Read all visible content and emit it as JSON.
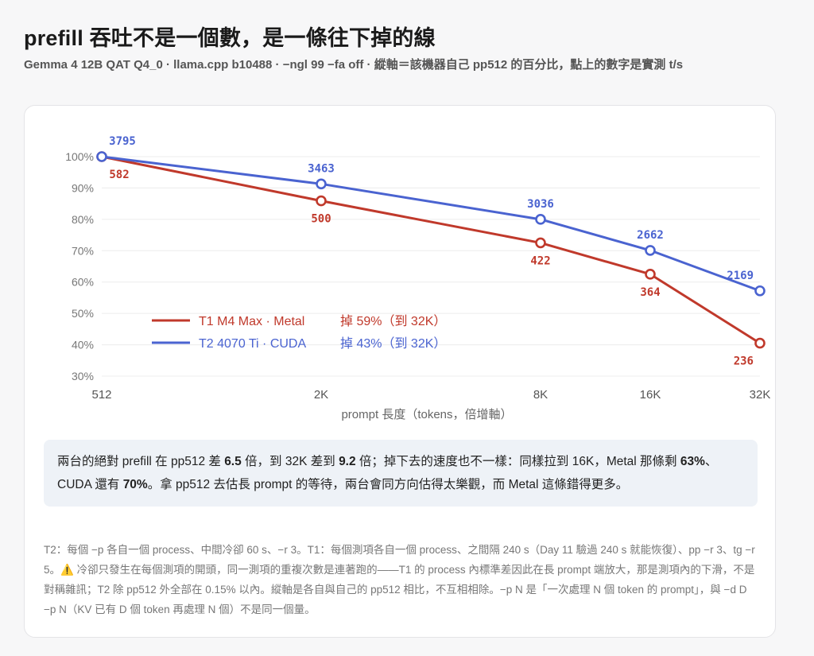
{
  "title": "prefill 吞吐不是一個數，是一條往下掉的線",
  "subtitle": "Gemma 4 12B QAT Q4_0 · llama.cpp b10488 · −ngl 99 −fa off · 縱軸＝該機器自己 pp512 的百分比，點上的數字是實測 t/s",
  "colors": {
    "t1": "#c0392b",
    "t2": "#4a63d0"
  },
  "chart_data": {
    "type": "line",
    "categories": [
      "512",
      "2K",
      "8K",
      "16K",
      "32K"
    ],
    "x": [
      512,
      2048,
      8192,
      16384,
      32768
    ],
    "xscale": "log2",
    "xlabel": "prompt 長度（tokens，倍增軸）",
    "ylabel": "",
    "ylim": [
      30,
      100
    ],
    "yticks": [
      "100%",
      "90%",
      "80%",
      "70%",
      "60%",
      "50%",
      "40%",
      "30%"
    ],
    "grid": true,
    "legend_position": "center-left",
    "series": [
      {
        "name": "T1 M4 Max · Metal",
        "tag": "掉 59%（到 32K）",
        "values": [
          100,
          85.9,
          72.5,
          62.5,
          40.5
        ],
        "labels": [
          "582",
          "500",
          "422",
          "364",
          "236"
        ],
        "label_side": "below"
      },
      {
        "name": "T2 4070 Ti · CUDA",
        "tag": "掉 43%（到 32K）",
        "values": [
          100,
          91.3,
          80.0,
          70.1,
          57.2
        ],
        "labels": [
          "3795",
          "3463",
          "3036",
          "2662",
          "2169"
        ],
        "label_side": "above"
      }
    ]
  },
  "note": {
    "p1": "兩台的絕對 prefill 在 pp512 差 ",
    "v1": "6.5",
    "p2": " 倍，到 32K 差到 ",
    "v2": "9.2",
    "p3": " 倍；掉下去的速度也不一樣：同樣拉到 16K，Metal 那條剩 ",
    "v3": "63%",
    "p4": "、CUDA 還有 ",
    "v4": "70%",
    "p5": "。拿 pp512 去估長 prompt 的等待，兩台會同方向估得太樂觀，而 Metal 這條錯得更多。"
  },
  "footnote": {
    "before": "T2：每個 −p 各自一個 process、中間冷卻 60 s、−r 3。T1：每個測項各自一個 process、之間隔 240 s（Day 11 驗過 240 s 就能恢復）、pp −r 3、tg −r 5。",
    "warn_icon": "⚠️",
    "after": " 冷卻只發生在每個測項的開頭，同一測項的重複次數是連著跑的——T1 的 process 內標準差因此在長 prompt 端放大，那是測項內的下滑，不是對稱雜訊；T2 除 pp512 外全部在 0.15% 以內。縱軸是各自與自己的 pp512 相比，不互相相除。−p N 是「一次處理 N 個 token 的 prompt」，與 −d D −p N（KV 已有 D 個 token 再處理 N 個）不是同一個量。"
  }
}
